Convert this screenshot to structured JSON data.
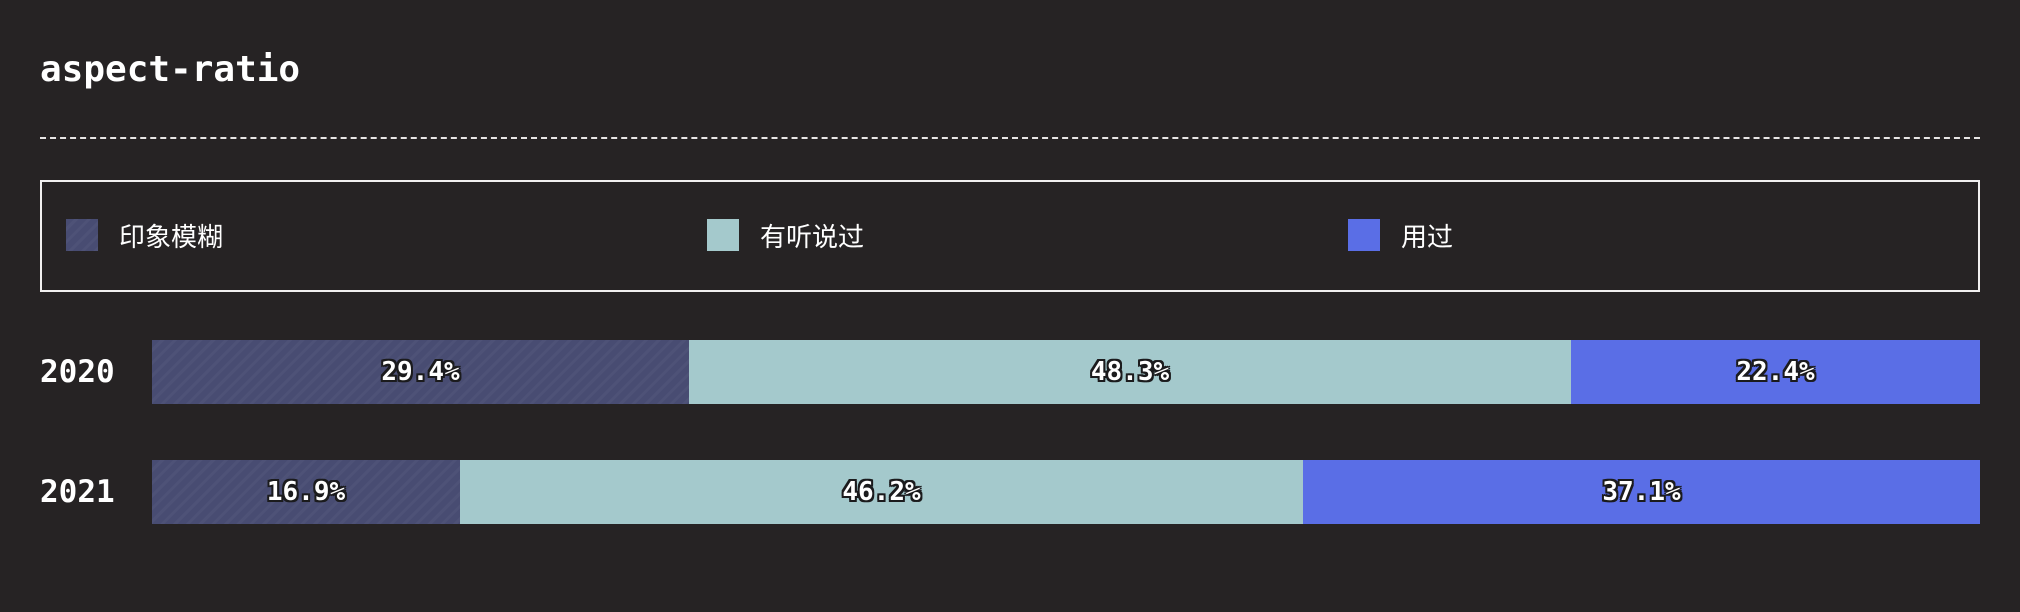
{
  "chart_data": {
    "type": "bar",
    "orientation": "horizontal",
    "stacked": true,
    "title": "aspect-ratio",
    "categories": [
      "2020",
      "2021"
    ],
    "series": [
      {
        "name": "印象模糊",
        "values": [
          29.4,
          16.9
        ],
        "labels": [
          "29.4%",
          "16.9%"
        ],
        "color": "#484c72",
        "pattern": "diagonal-stripes"
      },
      {
        "name": "有听说过",
        "values": [
          48.3,
          46.2
        ],
        "labels": [
          "48.3%",
          "46.2%"
        ],
        "color": "#a4c9cc"
      },
      {
        "name": "用过",
        "values": [
          22.4,
          37.1
        ],
        "labels": [
          "22.4%",
          "37.1%"
        ],
        "color": "#5a6ee6"
      }
    ],
    "legend": "top",
    "grid": false
  }
}
